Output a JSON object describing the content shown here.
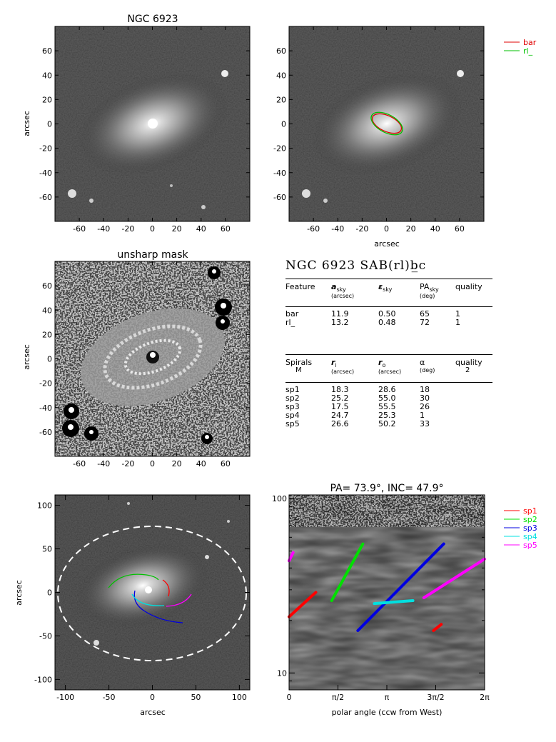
{
  "panels": {
    "top_left_title": "NGC 6923",
    "mid_left_title": "unsharp mask",
    "bottom_right_title": "PA= 73.9°, INC= 47.9°",
    "axis_label_arcsec": "arcsec",
    "axis_label_polar": "polar angle (ccw from West)"
  },
  "ticks": {
    "img_x": [
      "-60",
      "-40",
      "-20",
      "0",
      "20",
      "40",
      "60"
    ],
    "img_y": [
      "60",
      "40",
      "20",
      "0",
      "-20",
      "-40",
      "-60"
    ],
    "big_x": [
      "-100",
      "-50",
      "0",
      "50",
      "100"
    ],
    "big_y": [
      "100",
      "50",
      "0",
      "-50",
      "-100"
    ],
    "polar_x": [
      "0",
      "π/2",
      "π",
      "3π/2",
      "2π"
    ],
    "polar_y": [
      "100",
      "10"
    ]
  },
  "legend_top": [
    {
      "label": "bar",
      "color": "#e00000"
    },
    {
      "label": "rl_",
      "color": "#00c000"
    }
  ],
  "legend_bottom": [
    {
      "label": "sp1",
      "color": "#ff0000"
    },
    {
      "label": "sp2",
      "color": "#00e000"
    },
    {
      "label": "sp3",
      "color": "#0000e0"
    },
    {
      "label": "sp4",
      "color": "#00e0e0"
    },
    {
      "label": "sp5",
      "color": "#ff00ff"
    }
  ],
  "table": {
    "title": "NGC 6923  SAB(rl)b̲c",
    "feature_header": [
      "Feature",
      "a",
      "sky",
      "(arcsec)",
      "ε",
      "sky",
      "PA",
      "sky",
      "(deg)",
      "quality"
    ],
    "features": [
      [
        "bar",
        "11.9",
        "0.50",
        "65",
        "1"
      ],
      [
        "rl_",
        "13.2",
        "0.48",
        "72",
        "1"
      ]
    ],
    "spiral_header": [
      "Spirals",
      "M",
      "r",
      "i",
      "(arcsec)",
      "r",
      "o",
      "(arcsec)",
      "α",
      "(deg)",
      "quality",
      "2"
    ],
    "spirals": [
      [
        "sp1",
        "18.3",
        "28.6",
        "18"
      ],
      [
        "sp2",
        "25.2",
        "55.0",
        "30"
      ],
      [
        "sp3",
        "17.5",
        "55.5",
        "26"
      ],
      [
        "sp4",
        "24.7",
        "25.3",
        "1"
      ],
      [
        "sp5",
        "26.6",
        "50.2",
        "33"
      ]
    ]
  },
  "chart_data": {
    "type": "line",
    "title": "PA= 73.9°, INC= 47.9°",
    "xlabel": "polar angle (ccw from West)",
    "ylabel": "",
    "x_scale": "linear (radians)",
    "y_scale": "log",
    "xlim": [
      0,
      6.2832
    ],
    "ylim": [
      8,
      105
    ],
    "series": [
      {
        "name": "sp1",
        "color": "#ff0000",
        "segments": [
          [
            [
              0,
              21
            ],
            [
              0.86,
              29
            ]
          ],
          [
            [
              4.64,
              17.5
            ],
            [
              4.89,
              19
            ]
          ]
        ]
      },
      {
        "name": "sp2",
        "color": "#00e000",
        "segments": [
          [
            [
              1.37,
              26
            ],
            [
              2.37,
              55
            ]
          ]
        ]
      },
      {
        "name": "sp3",
        "color": "#0000e0",
        "segments": [
          [
            [
              2.21,
              17.5
            ],
            [
              4.97,
              55
            ]
          ]
        ]
      },
      {
        "name": "sp4",
        "color": "#00e0e0",
        "segments": [
          [
            [
              2.74,
              25
            ],
            [
              3.98,
              26
            ]
          ]
        ]
      },
      {
        "name": "sp5",
        "color": "#ff00ff",
        "segments": [
          [
            [
              0,
              44
            ],
            [
              0.13,
              49
            ]
          ],
          [
            [
              4.33,
              27
            ],
            [
              6.28,
              45
            ]
          ]
        ]
      }
    ]
  }
}
